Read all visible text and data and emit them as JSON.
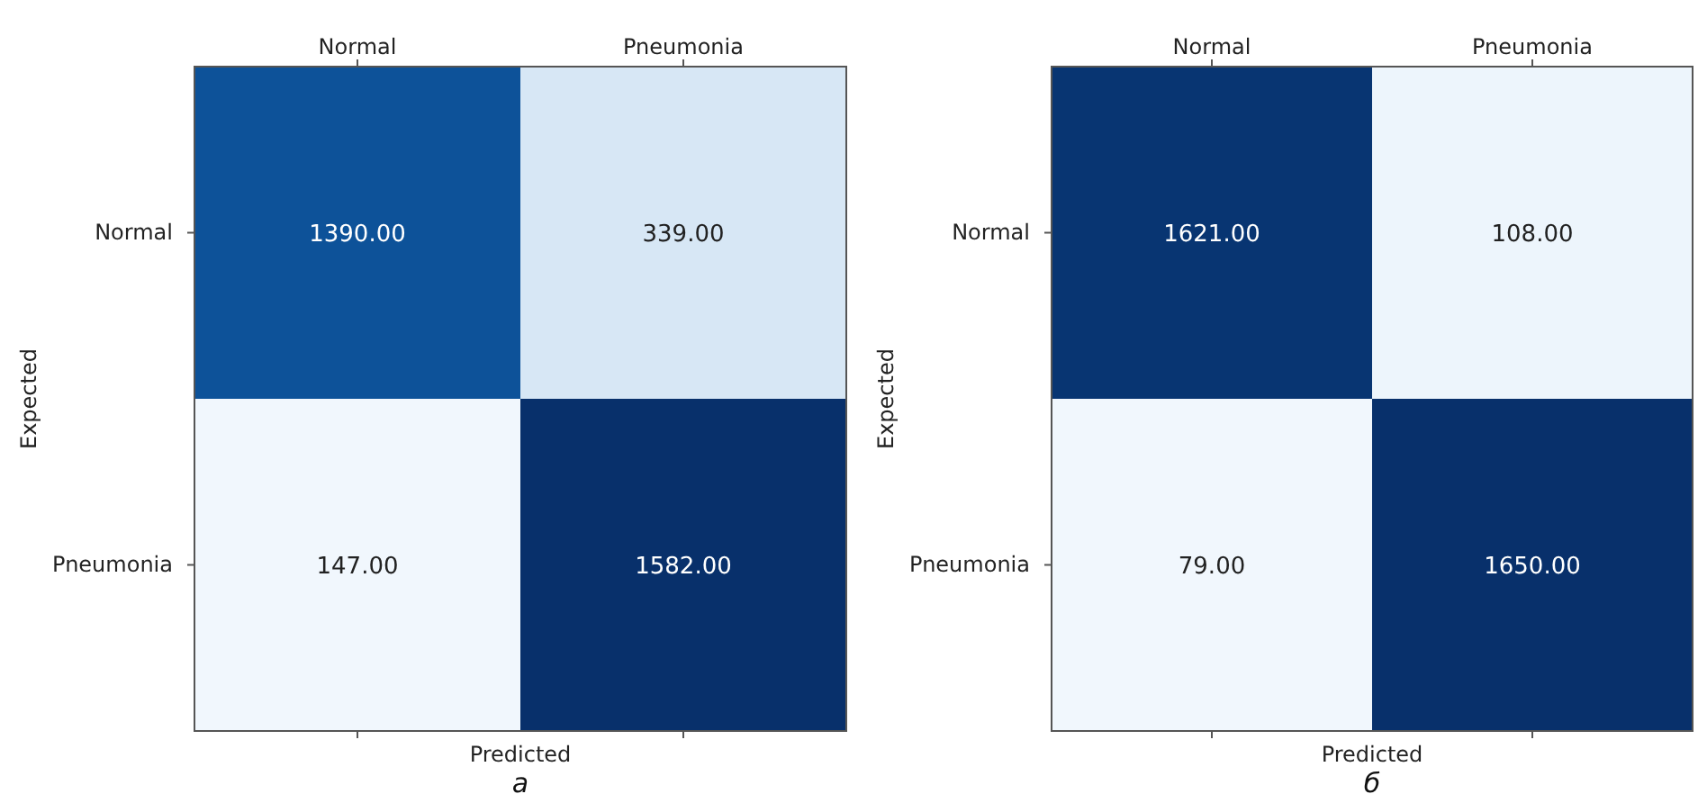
{
  "chart_data": [
    {
      "type": "heatmap",
      "xlabel": "Predicted",
      "ylabel": "Expected",
      "categories": [
        "Normal",
        "Pneumonia"
      ],
      "y_categories": [
        "Normal",
        "Pneumonia"
      ],
      "cells": [
        [
          1390,
          339
        ],
        [
          147,
          1582
        ]
      ],
      "cell_labels": [
        [
          "1390.00",
          "339.00"
        ],
        [
          "147.00",
          "1582.00"
        ]
      ],
      "annotations": [
        "а"
      ]
    },
    {
      "type": "heatmap",
      "xlabel": "Predicted",
      "ylabel": "Expected",
      "categories": [
        "Normal",
        "Pneumonia"
      ],
      "y_categories": [
        "Normal",
        "Pneumonia"
      ],
      "cells": [
        [
          1621,
          108
        ],
        [
          79,
          1650
        ]
      ],
      "cell_labels": [
        [
          "1621.00",
          "108.00"
        ],
        [
          "79.00",
          "1650.00"
        ]
      ],
      "annotations": [
        "б"
      ]
    }
  ]
}
